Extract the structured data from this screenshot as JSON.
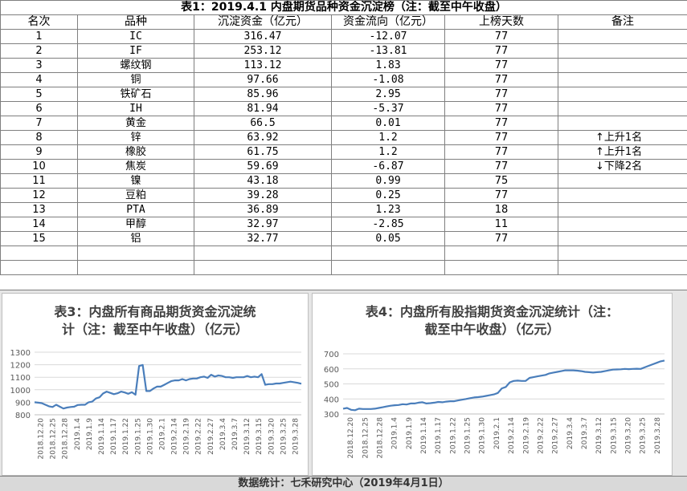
{
  "table": {
    "title": "表1：2019.4.1 内盘期货品种资金沉淀榜（注：截至中午收盘）",
    "headers": [
      "名次",
      "品种",
      "沉淀资金（亿元）",
      "资金流向（亿元）",
      "上榜天数",
      "备注"
    ],
    "rows": [
      {
        "rank": "1",
        "name": "IC",
        "capital": "316.47",
        "flow": "-12.07",
        "days": "77",
        "note": "",
        "arrow": ""
      },
      {
        "rank": "2",
        "name": "IF",
        "capital": "253.12",
        "flow": "-13.81",
        "days": "77",
        "note": "",
        "arrow": ""
      },
      {
        "rank": "3",
        "name": "螺纹钢",
        "capital": "113.12",
        "flow": "1.83",
        "days": "77",
        "note": "",
        "arrow": ""
      },
      {
        "rank": "4",
        "name": "铜",
        "capital": "97.66",
        "flow": "-1.08",
        "days": "77",
        "note": "",
        "arrow": ""
      },
      {
        "rank": "5",
        "name": "铁矿石",
        "capital": "85.96",
        "flow": "2.95",
        "days": "77",
        "note": "",
        "arrow": ""
      },
      {
        "rank": "6",
        "name": "IH",
        "capital": "81.94",
        "flow": "-5.37",
        "days": "77",
        "note": "",
        "arrow": ""
      },
      {
        "rank": "7",
        "name": "黄金",
        "capital": "66.5",
        "flow": "0.01",
        "days": "77",
        "note": "",
        "arrow": ""
      },
      {
        "rank": "8",
        "name": "锌",
        "capital": "63.92",
        "flow": "1.2",
        "days": "77",
        "note": "上升1名",
        "arrow": "up"
      },
      {
        "rank": "9",
        "name": "橡胶",
        "capital": "61.75",
        "flow": "1.2",
        "days": "77",
        "note": "上升1名",
        "arrow": "up"
      },
      {
        "rank": "10",
        "name": "焦炭",
        "capital": "59.69",
        "flow": "-6.87",
        "days": "77",
        "note": "下降2名",
        "arrow": "down"
      },
      {
        "rank": "11",
        "name": "镍",
        "capital": "43.18",
        "flow": "0.99",
        "days": "75",
        "note": "",
        "arrow": ""
      },
      {
        "rank": "12",
        "name": "豆粕",
        "capital": "39.28",
        "flow": "0.25",
        "days": "77",
        "note": "",
        "arrow": ""
      },
      {
        "rank": "13",
        "name": "PTA",
        "capital": "36.89",
        "flow": "1.23",
        "days": "18",
        "note": "",
        "arrow": ""
      },
      {
        "rank": "14",
        "name": "甲醇",
        "capital": "32.97",
        "flow": "-2.85",
        "days": "11",
        "note": "",
        "arrow": ""
      },
      {
        "rank": "15",
        "name": "铝",
        "capital": "32.77",
        "flow": "0.05",
        "days": "77",
        "note": "",
        "arrow": ""
      }
    ]
  },
  "footer": "数据统计：七禾研究中心（2019年4月1日）",
  "chart_data": [
    {
      "type": "line",
      "title": "表3：内盘所有商品期货资金沉淀统计（注：截至中午收盘）（亿元）",
      "title_lines": [
        "表3：内盘所有商品期货资金沉淀统",
        "计（注：截至中午收盘）（亿元）"
      ],
      "ylim": [
        800,
        1300
      ],
      "yticks": [
        800,
        900,
        1000,
        1100,
        1200,
        1300
      ],
      "x_tick_labels": [
        "2018.12.20",
        "2018.12.25",
        "2018.12.28",
        "2019.1.4",
        "2019.1.9",
        "2019.1.14",
        "2019.1.17",
        "2019.1.22",
        "2019.1.25",
        "2019.1.30",
        "2019.2.1",
        "2019.2.14",
        "2019.2.19",
        "2019.2.22",
        "2019.2.27",
        "2019.3.4",
        "2019.3.7",
        "2019.3.12",
        "2019.3.15",
        "2019.3.20",
        "2019.3.25",
        "2019.3.28"
      ],
      "grid": true,
      "color": "#4a7ebb",
      "series": [
        {
          "values": [
            900,
            897,
            893,
            880,
            868,
            862,
            880,
            865,
            850,
            858,
            862,
            865,
            878,
            880,
            880,
            900,
            905,
            930,
            940,
            970,
            985,
            975,
            965,
            972,
            985,
            978,
            968,
            980,
            960,
            1190,
            1198,
            990,
            990,
            1010,
            1025,
            1025,
            1040,
            1055,
            1070,
            1075,
            1075,
            1085,
            1075,
            1085,
            1090,
            1090,
            1100,
            1105,
            1095,
            1120,
            1105,
            1115,
            1110,
            1100,
            1100,
            1095,
            1100,
            1100,
            1100,
            1110,
            1100,
            1105,
            1100,
            1125,
            1040,
            1045,
            1045,
            1050,
            1050,
            1055,
            1060,
            1065,
            1060,
            1055,
            1048
          ]
        }
      ]
    },
    {
      "type": "line",
      "title": "表4：内盘所有股指期货资金沉淀统计（注：截至中午收盘）（亿元）",
      "title_lines": [
        "表4：内盘所有股指期货资金沉淀统计（注：",
        "截至中午收盘）（亿元）"
      ],
      "ylim": [
        300,
        700
      ],
      "yticks": [
        300,
        400,
        500,
        600,
        700
      ],
      "x_tick_labels": [
        "2018.12.20",
        "2018.12.25",
        "2018.12.28",
        "2019.1.4",
        "2019.1.9",
        "2019.1.14",
        "2019.1.17",
        "2019.1.22",
        "2019.1.25",
        "2019.1.30",
        "2019.2.1",
        "2019.2.14",
        "2019.2.19",
        "2019.2.22",
        "2019.2.27",
        "2019.3.4",
        "2019.3.7",
        "2019.3.12",
        "2019.3.15",
        "2019.3.20",
        "2019.3.25",
        "2019.3.28"
      ],
      "grid": true,
      "color": "#4a7ebb",
      "series": [
        {
          "values": [
            335,
            340,
            328,
            325,
            335,
            333,
            333,
            333,
            335,
            340,
            345,
            350,
            355,
            358,
            360,
            365,
            363,
            370,
            370,
            375,
            378,
            370,
            372,
            375,
            380,
            378,
            382,
            385,
            385,
            390,
            395,
            400,
            405,
            410,
            412,
            415,
            420,
            425,
            430,
            440,
            470,
            480,
            510,
            520,
            522,
            520,
            520,
            540,
            545,
            550,
            555,
            560,
            570,
            575,
            580,
            585,
            590,
            590,
            590,
            588,
            585,
            580,
            578,
            575,
            578,
            580,
            585,
            590,
            595,
            596,
            597,
            600,
            598,
            600,
            601,
            600,
            610,
            620,
            630,
            640,
            650,
            655
          ]
        }
      ]
    }
  ]
}
